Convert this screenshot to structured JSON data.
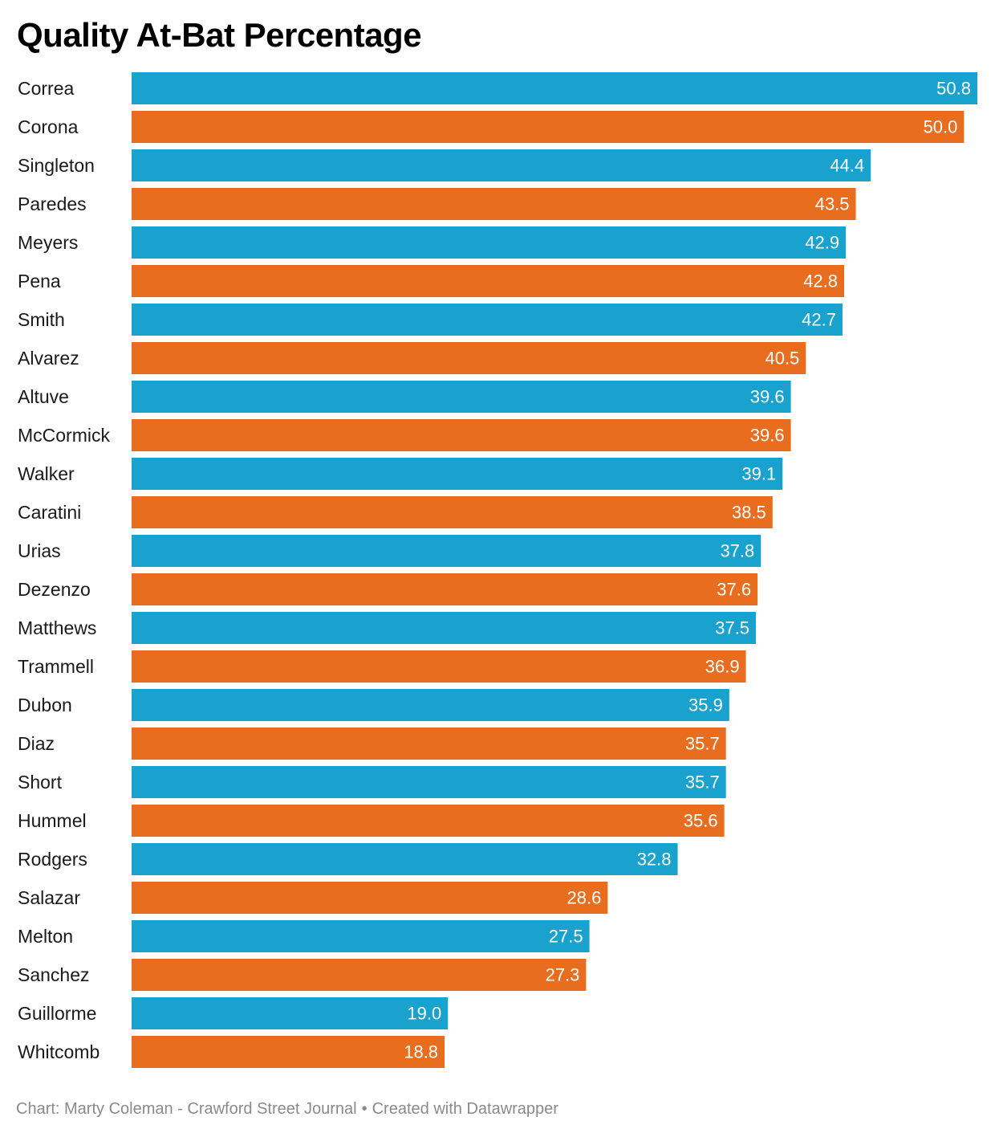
{
  "chart_data": {
    "type": "bar",
    "orientation": "horizontal",
    "title": "Quality At-Bat Percentage",
    "categories": [
      "Correa",
      "Corona",
      "Singleton",
      "Paredes",
      "Meyers",
      "Pena",
      "Smith",
      "Alvarez",
      "Altuve",
      "McCormick",
      "Walker",
      "Caratini",
      "Urias",
      "Dezenzo",
      "Matthews",
      "Trammell",
      "Dubon",
      "Diaz",
      "Short",
      "Hummel",
      "Rodgers",
      "Salazar",
      "Melton",
      "Sanchez",
      "Guillorme",
      "Whitcomb"
    ],
    "values": [
      50.8,
      50.0,
      44.4,
      43.5,
      42.9,
      42.8,
      42.7,
      40.5,
      39.6,
      39.6,
      39.1,
      38.5,
      37.8,
      37.6,
      37.5,
      36.9,
      35.9,
      35.7,
      35.7,
      35.6,
      32.8,
      28.6,
      27.5,
      27.3,
      19.0,
      18.8
    ],
    "value_labels": [
      "50.8",
      "50.0",
      "44.4",
      "43.5",
      "42.9",
      "42.8",
      "42.7",
      "40.5",
      "39.6",
      "39.6",
      "39.1",
      "38.5",
      "37.8",
      "37.6",
      "37.5",
      "36.9",
      "35.9",
      "35.7",
      "35.7",
      "35.6",
      "32.8",
      "28.6",
      "27.5",
      "27.3",
      "19.0",
      "18.8"
    ],
    "colors": [
      "#1aa2cf",
      "#e96d1f"
    ],
    "color_pattern": "alternating",
    "value_label_color": "#ffffff",
    "xlim": [
      0,
      50.8
    ],
    "grid": false,
    "legend": "none"
  },
  "footer": {
    "credit": "Chart: Marty Coleman - Crawford Street Journal",
    "separator": "•",
    "tool": "Created with Datawrapper"
  }
}
